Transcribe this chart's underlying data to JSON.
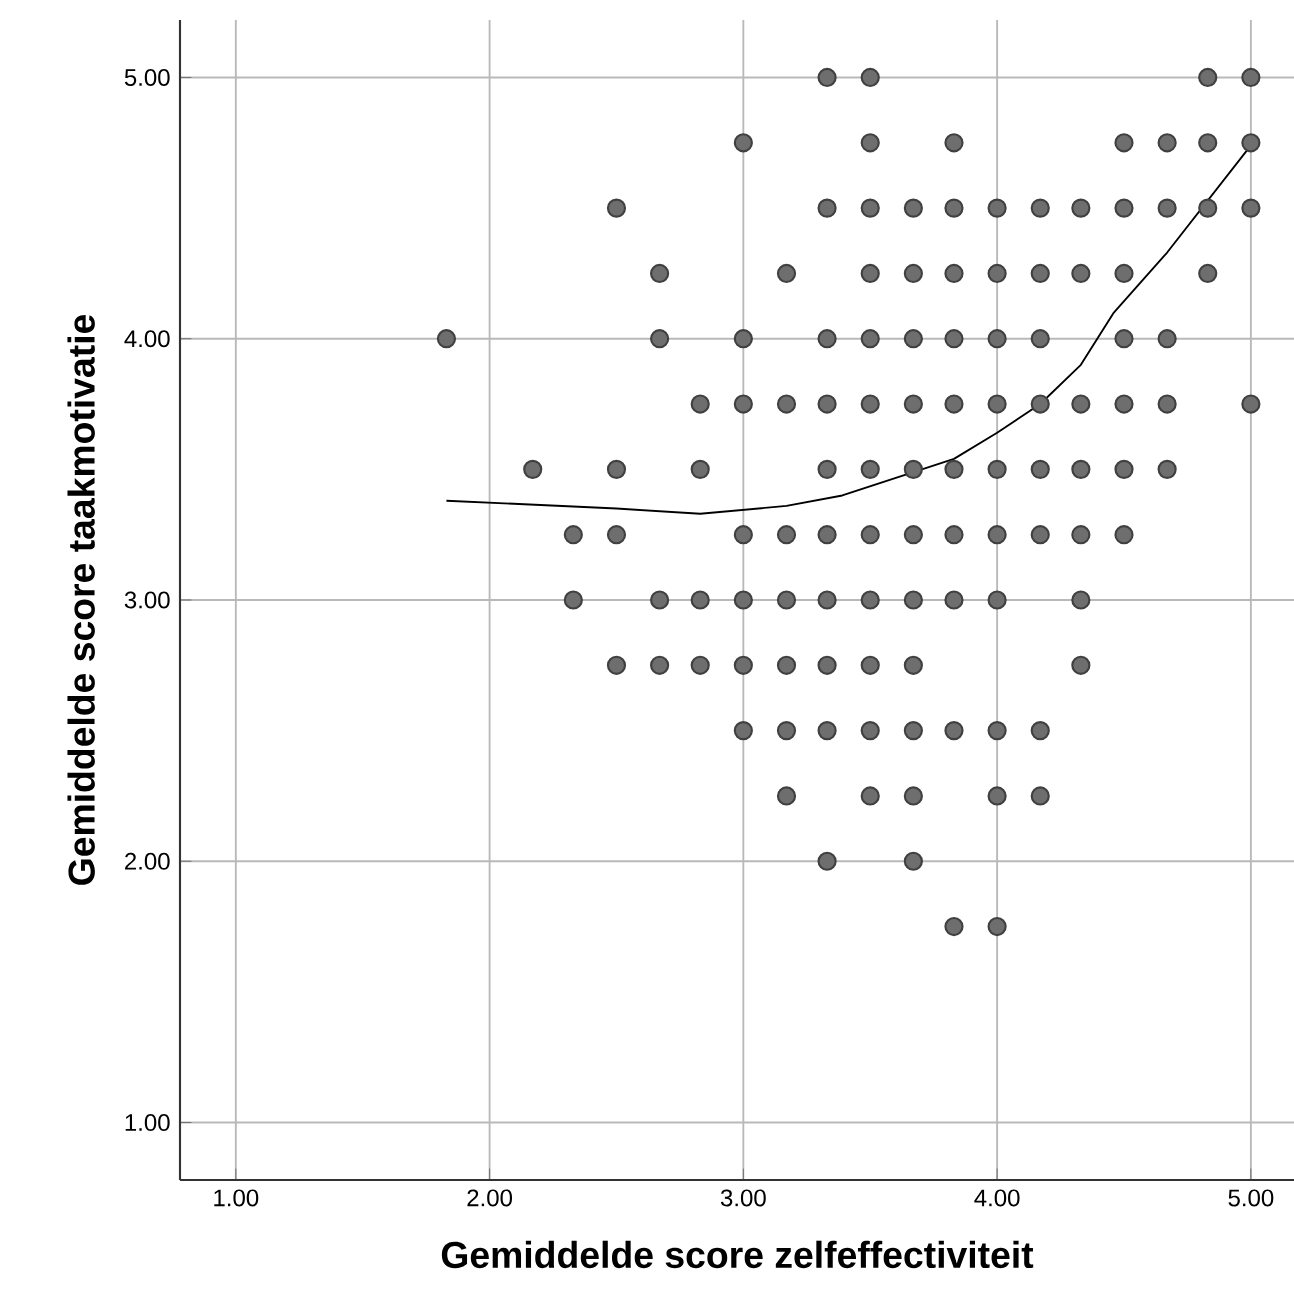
{
  "chart_data": {
    "type": "scatter",
    "xlabel": "Gemiddelde score zelfeffectiviteit",
    "ylabel": "Gemiddelde score taakmotivatie",
    "xlim": [
      0.78,
      5.17
    ],
    "ylim": [
      0.78,
      5.22
    ],
    "xticks": [
      {
        "value": 1,
        "label": "1.00"
      },
      {
        "value": 2,
        "label": "2.00"
      },
      {
        "value": 3,
        "label": "3.00"
      },
      {
        "value": 4,
        "label": "4.00"
      },
      {
        "value": 5,
        "label": "5.00"
      }
    ],
    "yticks": [
      {
        "value": 1,
        "label": "1.00"
      },
      {
        "value": 2,
        "label": "2.00"
      },
      {
        "value": 3,
        "label": "3.00"
      },
      {
        "value": 4,
        "label": "4.00"
      },
      {
        "value": 5,
        "label": "5.00"
      }
    ],
    "grid": true,
    "series": [
      {
        "color": "#6e6e6e",
        "marker": "circle",
        "x": [
          3.33,
          3.5,
          4.83,
          5.0,
          3.0,
          3.5,
          3.83,
          4.5,
          4.67,
          4.83,
          5.0,
          2.5,
          3.33,
          3.5,
          3.67,
          3.83,
          4.0,
          4.17,
          4.33,
          4.5,
          4.67,
          4.83,
          5.0,
          2.67,
          3.17,
          3.5,
          3.67,
          3.83,
          4.0,
          4.17,
          4.33,
          4.5,
          4.83,
          1.83,
          2.67,
          3.0,
          3.33,
          3.5,
          3.67,
          3.83,
          4.0,
          4.17,
          4.5,
          4.67,
          2.83,
          3.0,
          3.17,
          3.33,
          3.5,
          3.67,
          3.83,
          4.0,
          4.17,
          4.33,
          4.5,
          4.67,
          5.0,
          2.17,
          2.5,
          2.83,
          3.33,
          3.5,
          3.67,
          3.83,
          4.0,
          4.17,
          4.33,
          4.5,
          4.67,
          2.33,
          2.5,
          3.0,
          3.17,
          3.33,
          3.5,
          3.67,
          3.83,
          4.0,
          4.17,
          4.33,
          4.5,
          2.33,
          2.67,
          2.83,
          3.0,
          3.17,
          3.33,
          3.5,
          3.67,
          3.83,
          4.0,
          4.33,
          2.5,
          2.67,
          2.83,
          3.0,
          3.17,
          3.33,
          3.5,
          3.67,
          4.33,
          3.0,
          3.17,
          3.33,
          3.5,
          3.67,
          3.83,
          4.0,
          4.17,
          3.17,
          3.5,
          3.67,
          4.0,
          4.17,
          3.33,
          3.67,
          3.83,
          4.0
        ],
        "values": [
          5.0,
          5.0,
          5.0,
          5.0,
          4.75,
          4.75,
          4.75,
          4.75,
          4.75,
          4.75,
          4.75,
          4.5,
          4.5,
          4.5,
          4.5,
          4.5,
          4.5,
          4.5,
          4.5,
          4.5,
          4.5,
          4.5,
          4.5,
          4.25,
          4.25,
          4.25,
          4.25,
          4.25,
          4.25,
          4.25,
          4.25,
          4.25,
          4.25,
          4.0,
          4.0,
          4.0,
          4.0,
          4.0,
          4.0,
          4.0,
          4.0,
          4.0,
          4.0,
          4.0,
          3.75,
          3.75,
          3.75,
          3.75,
          3.75,
          3.75,
          3.75,
          3.75,
          3.75,
          3.75,
          3.75,
          3.75,
          3.75,
          3.5,
          3.5,
          3.5,
          3.5,
          3.5,
          3.5,
          3.5,
          3.5,
          3.5,
          3.5,
          3.5,
          3.5,
          3.25,
          3.25,
          3.25,
          3.25,
          3.25,
          3.25,
          3.25,
          3.25,
          3.25,
          3.25,
          3.25,
          3.25,
          3.0,
          3.0,
          3.0,
          3.0,
          3.0,
          3.0,
          3.0,
          3.0,
          3.0,
          3.0,
          3.0,
          2.75,
          2.75,
          2.75,
          2.75,
          2.75,
          2.75,
          2.75,
          2.75,
          2.75,
          2.5,
          2.5,
          2.5,
          2.5,
          2.5,
          2.5,
          2.5,
          2.5,
          2.25,
          2.25,
          2.25,
          2.25,
          2.25,
          2.0,
          2.0,
          1.75,
          1.75
        ]
      },
      {
        "type": "line",
        "color": "#000000",
        "marker": "none",
        "x": [
          1.83,
          2.5,
          2.83,
          3.17,
          3.39,
          3.83,
          4.0,
          4.17,
          4.33,
          4.46,
          4.67,
          5.0
        ],
        "values": [
          3.38,
          3.35,
          3.33,
          3.36,
          3.4,
          3.54,
          3.64,
          3.75,
          3.9,
          4.1,
          4.33,
          4.74
        ]
      }
    ]
  }
}
